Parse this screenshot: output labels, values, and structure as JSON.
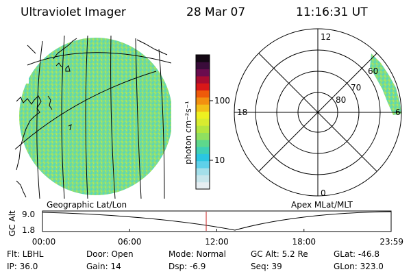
{
  "header": {
    "title": "Ultraviolet Imager",
    "date": "28 Mar 07",
    "time": "11:16:31 UT"
  },
  "globe": {
    "caption": "Geographic Lat/Lon"
  },
  "colorbar": {
    "unit_label": "photon cm⁻²s⁻¹",
    "ticks": [
      {
        "label": "100",
        "value": 100
      },
      {
        "label": "10",
        "value": 10
      }
    ],
    "colors": [
      "#e6eef2",
      "#c8e6ec",
      "#a4dfea",
      "#5fd1ea",
      "#2bc6e2",
      "#3fd0b6",
      "#5ed88c",
      "#8fe060",
      "#b4e640",
      "#d8ec30",
      "#eef020",
      "#f2c018",
      "#f29010",
      "#ee5a0a",
      "#d81818",
      "#a80c30",
      "#6a0c4e",
      "#3a0c3a",
      "#140814"
    ]
  },
  "polar": {
    "caption": "Apex MLat/MLT",
    "mlt_labels": {
      "top": "12",
      "left": "18",
      "right": "6",
      "bottom": "0"
    },
    "lat_labels": [
      "60",
      "70",
      "80"
    ]
  },
  "altitude_plot": {
    "ylabel": "GC Alt",
    "yticks": [
      "9.0",
      "1.8"
    ],
    "xticks": [
      "00:00",
      "06:00",
      "12:00",
      "18:00",
      "23:59"
    ],
    "current_hour": 11.27
  },
  "status": {
    "row1": {
      "flt": "Flt: LBHL",
      "door": "Door: Open",
      "mode": "Mode: Normal",
      "gcalt": "GC Alt: 5.2 Re",
      "glat": "GLat: -46.8"
    },
    "row2": {
      "ip": "IP: 36.0",
      "gain": "Gain: 14",
      "dsp": "Dsp:   -6.9",
      "seq": "Seq: 39",
      "glon": "GLon: 323.0"
    }
  }
}
